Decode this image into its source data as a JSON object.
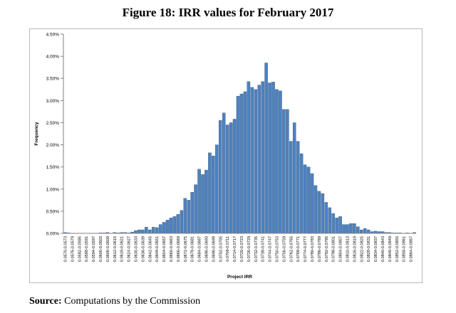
{
  "page": {
    "title": "Figure 18: IRR values for February 2017",
    "source_label": "Source:",
    "source_text": " Computations by the Commission"
  },
  "chart_data": {
    "type": "bar",
    "xlabel": "Project IRR",
    "ylabel": "Frequency",
    "ylim": [
      0,
      0.045
    ],
    "y_ticks": [
      "0.00%",
      "0.50%",
      "1.00%",
      "1.50%",
      "2.00%",
      "2.50%",
      "3.00%",
      "3.50%",
      "4.00%",
      "4.50%"
    ],
    "grid": false,
    "bar_color": "#4f81bd",
    "categories": [
      "0.0570-0.0573",
      "0.0573-0.0576",
      "0.0576-0.0579",
      "0.0579-0.0582",
      "0.0582-0.0585",
      "0.0585-0.0588",
      "0.0588-0.0591",
      "0.0591-0.0594",
      "0.0594-0.0597",
      "0.0597-0.0600",
      "0.0600-0.0603",
      "0.0603-0.0606",
      "0.0606-0.0609",
      "0.0609-0.0612",
      "0.0612-0.0615",
      "0.0615-0.0618",
      "0.0618-0.0621",
      "0.0621-0.0624",
      "0.0624-0.0627",
      "0.0627-0.0630",
      "0.0630-0.0633",
      "0.0633-0.0636",
      "0.0636-0.0639",
      "0.0639-0.0642",
      "0.0642-0.0645",
      "0.0645-0.0648",
      "0.0648-0.0651",
      "0.0651-0.0654",
      "0.0654-0.0657",
      "0.0657-0.0660",
      "0.0660-0.0663",
      "0.0663-0.0666",
      "0.0666-0.0669",
      "0.0669-0.0672",
      "0.0672-0.0675",
      "0.0675-0.0678",
      "0.0678-0.0681",
      "0.0681-0.0684",
      "0.0684-0.0687",
      "0.0687-0.0690",
      "0.0690-0.0693",
      "0.0693-0.0696",
      "0.0696-0.0699",
      "0.0699-0.0702",
      "0.0702-0.0705",
      "0.0705-0.0708",
      "0.0708-0.0711",
      "0.0711-0.0714",
      "0.0714-0.0717",
      "0.0717-0.0720",
      "0.0720-0.0723",
      "0.0723-0.0726",
      "0.0726-0.0729",
      "0.0729-0.0732",
      "0.0732-0.0735",
      "0.0735-0.0738",
      "0.0738-0.0741",
      "0.0741-0.0744",
      "0.0744-0.0747",
      "0.0747-0.0750",
      "0.0750-0.0753",
      "0.0753-0.0756",
      "0.0756-0.0759",
      "0.0759-0.0762",
      "0.0762-0.0765",
      "0.0765-0.0768",
      "0.0768-0.0771",
      "0.0771-0.0774",
      "0.0774-0.0777",
      "0.0777-0.0780",
      "0.0780-0.0783",
      "0.0783-0.0786",
      "0.0786-0.0789",
      "0.0789-0.0792",
      "0.0792-0.0795",
      "0.0795-0.0798",
      "0.0798-0.0801",
      "0.0801-0.0804",
      "0.0804-0.0807",
      "0.0807-0.0810",
      "0.0810-0.0813",
      "0.0813-0.0816",
      "0.0816-0.0819",
      "0.0819-0.0822",
      "0.0822-0.0825",
      "0.0825-0.0828",
      "0.0828-0.0831",
      "0.0831-0.0834",
      "0.0834-0.0837",
      "0.0837-0.0840",
      "0.0840-0.0843",
      "0.0843-0.0846",
      "0.0846-0.0849",
      "0.0849-0.0852",
      "0.0852-0.0855",
      "0.0855-0.0858",
      "0.0858-0.0861",
      "0.0861-0.0864",
      "0.0864-0.0867",
      "0.0867-0.0870"
    ],
    "values": [
      0.0002,
      0.0001,
      0.0,
      0.0,
      0.0,
      0.0,
      0.0,
      0.0,
      0.0,
      0.0,
      0.0001,
      0.0001,
      0.0002,
      0.0,
      0.0002,
      0.0001,
      0.0002,
      0.0002,
      0.0001,
      0.0003,
      0.0006,
      0.0008,
      0.0008,
      0.0014,
      0.0008,
      0.0014,
      0.0013,
      0.002,
      0.0025,
      0.003,
      0.0035,
      0.0038,
      0.0043,
      0.0052,
      0.0079,
      0.0075,
      0.0093,
      0.011,
      0.0145,
      0.0133,
      0.0143,
      0.0182,
      0.0175,
      0.02,
      0.0255,
      0.0272,
      0.0245,
      0.025,
      0.0258,
      0.031,
      0.0315,
      0.032,
      0.0343,
      0.033,
      0.0325,
      0.0335,
      0.0343,
      0.0385,
      0.034,
      0.0342,
      0.0325,
      0.0322,
      0.028,
      0.028,
      0.0208,
      0.025,
      0.0208,
      0.018,
      0.0155,
      0.015,
      0.0135,
      0.0108,
      0.0095,
      0.009,
      0.007,
      0.0058,
      0.0045,
      0.0035,
      0.0038,
      0.002,
      0.002,
      0.0022,
      0.0022,
      0.0015,
      0.0008,
      0.0011,
      0.0008,
      0.0004,
      0.0005,
      0.0004,
      0.0004,
      0.0002,
      0.0002,
      0.0001,
      0.0001,
      0.0001,
      0.0,
      0.0001,
      0.0,
      0.0002
    ]
  }
}
